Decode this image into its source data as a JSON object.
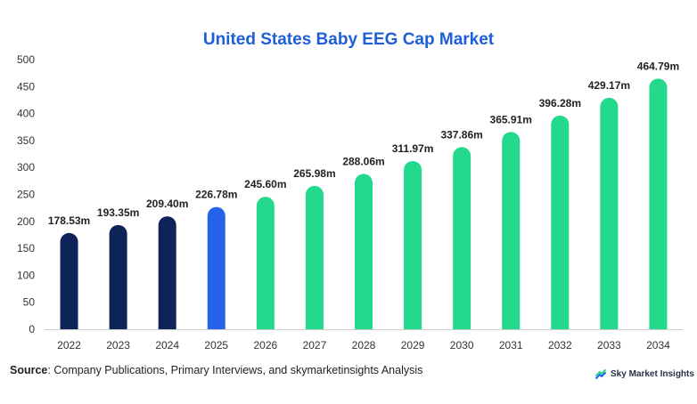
{
  "chart_data": {
    "type": "bar",
    "title": "United States Baby EEG Cap Market",
    "categories": [
      "2022",
      "2023",
      "2024",
      "2025",
      "2026",
      "2027",
      "2028",
      "2029",
      "2030",
      "2031",
      "2032",
      "2033",
      "2034"
    ],
    "values": [
      178.53,
      193.35,
      209.4,
      226.78,
      245.6,
      265.98,
      288.06,
      311.97,
      337.86,
      365.91,
      396.28,
      429.17,
      464.79
    ],
    "value_labels": [
      "178.53m",
      "193.35m",
      "209.40m",
      "226.78m",
      "245.60m",
      "265.98m",
      "288.06m",
      "311.97m",
      "337.86m",
      "365.91m",
      "396.28m",
      "429.17m",
      "464.79m"
    ],
    "bar_colors": [
      "#0e2358",
      "#0e2358",
      "#0e2358",
      "#2563eb",
      "#22d98c",
      "#22d98c",
      "#22d98c",
      "#22d98c",
      "#22d98c",
      "#22d98c",
      "#22d98c",
      "#22d98c",
      "#22d98c"
    ],
    "ylim": [
      0,
      500
    ],
    "yticks": [
      0,
      50,
      100,
      150,
      200,
      250,
      300,
      350,
      400,
      450,
      500
    ],
    "xlabel": "",
    "ylabel": "",
    "grid": false,
    "legend": "none"
  },
  "footer": {
    "source_label": "Source",
    "source_text": ": Company Publications, Primary Interviews, and skymarketinsights Analysis",
    "brand": "Sky Market Insights",
    "brand_icon": "sky-market-insights-logo-icon"
  }
}
